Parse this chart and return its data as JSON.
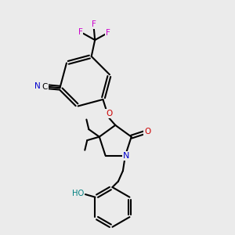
{
  "background_color": "#ebebeb",
  "bond_color": "#000000",
  "F_color": "#cc00cc",
  "N_color": "#0000cc",
  "O_color": "#cc0000",
  "HO_color": "#008080",
  "C_color": "#000000",
  "figsize": [
    3.0,
    3.0
  ],
  "dpi": 100,
  "xlim": [
    0,
    10
  ],
  "ylim": [
    0,
    10
  ]
}
